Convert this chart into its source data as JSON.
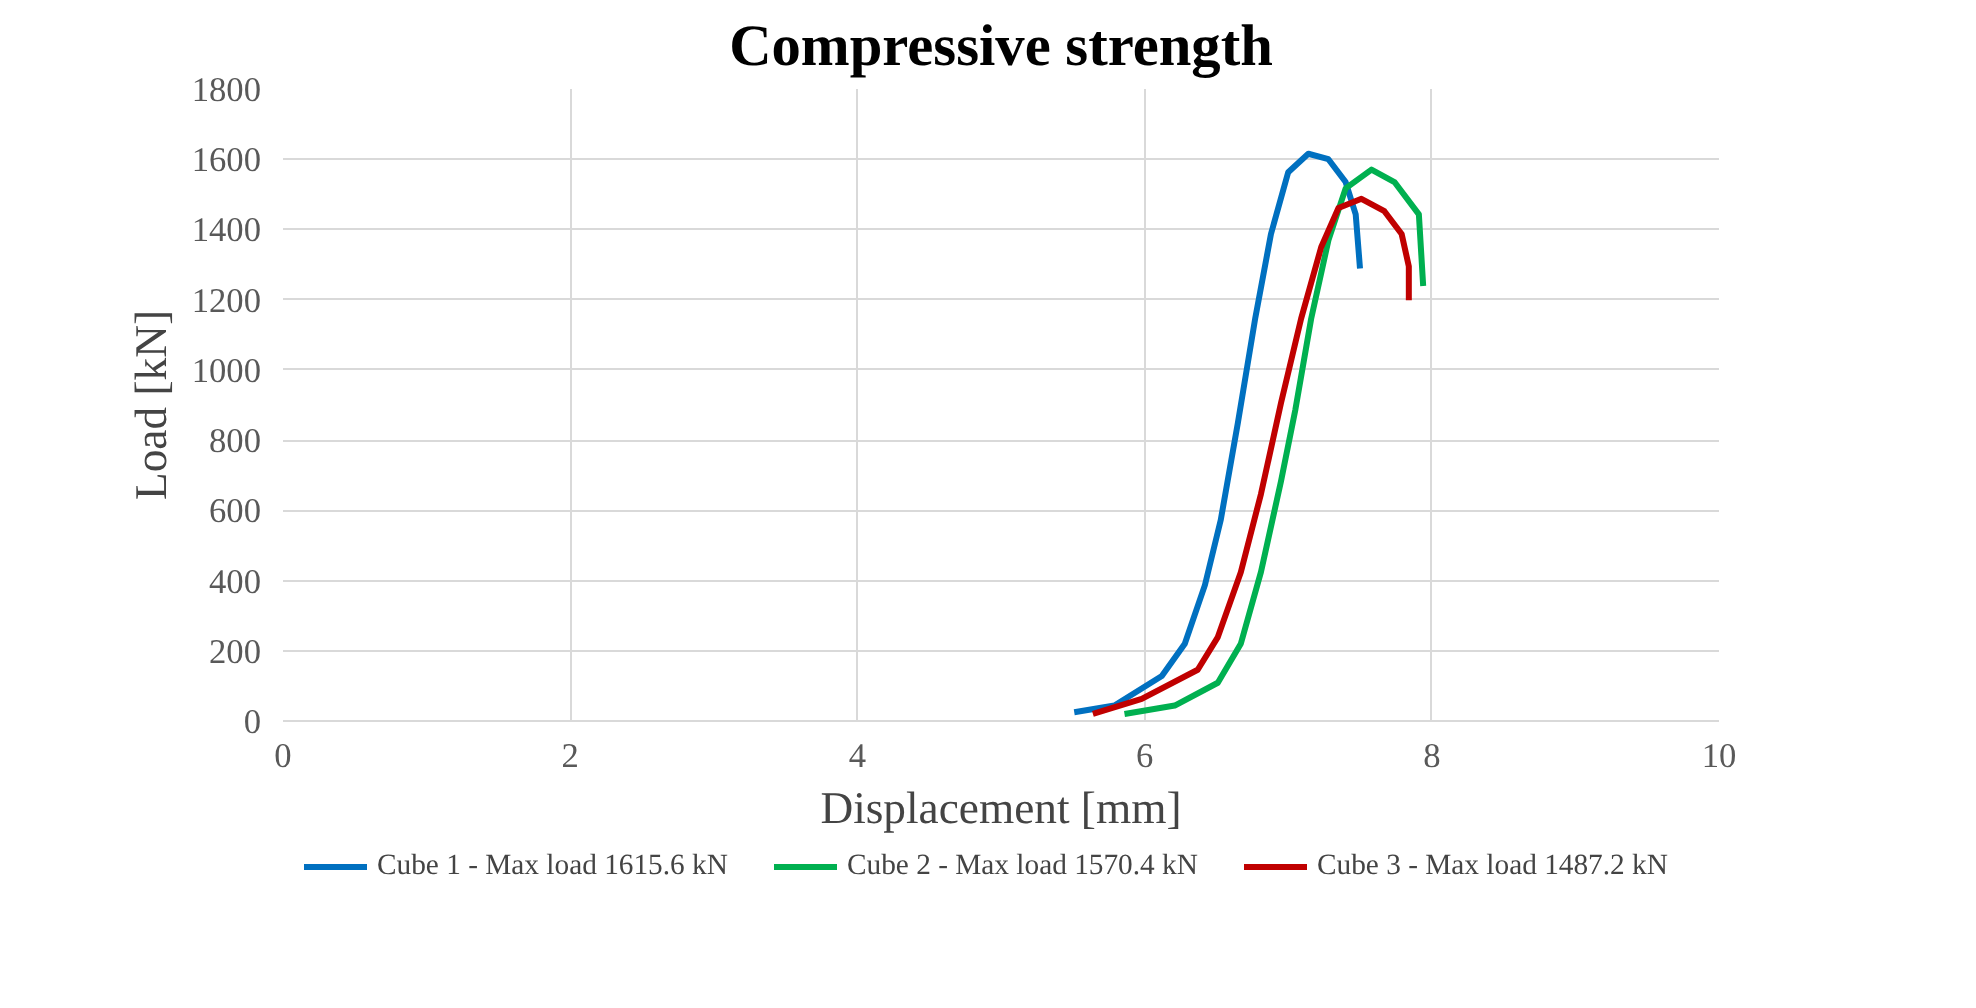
{
  "chart_data": {
    "type": "line",
    "title": "Compressive strength",
    "xlabel": "Displacement [mm]",
    "ylabel": "Load [kN]",
    "xlim": [
      0,
      10
    ],
    "xticks": [
      0,
      2,
      4,
      6,
      8,
      10
    ],
    "ylim": [
      0,
      1800
    ],
    "yticks": [
      0,
      200,
      400,
      600,
      800,
      1000,
      1200,
      1400,
      1600,
      1800
    ],
    "grid": true,
    "legend": "bottom",
    "marker": "none",
    "line_style": "solid",
    "series": [
      {
        "name": "Cube 1 - Max load 1615.6 kN",
        "color": "#0070c0",
        "x": [
          5.51,
          5.79,
          6.12,
          6.28,
          6.42,
          6.53,
          6.65,
          6.77,
          6.88,
          7.0,
          7.14,
          7.28,
          7.4,
          7.47,
          7.5
        ],
        "values": [
          25,
          44,
          128,
          220,
          387,
          572,
          850,
          1146,
          1387,
          1563,
          1615.6,
          1600,
          1535,
          1443,
          1289
        ]
      },
      {
        "name": "Cube 2 - Max load 1570.4 kN",
        "color": "#00b050",
        "x": [
          5.86,
          6.21,
          6.51,
          6.67,
          6.81,
          6.95,
          7.05,
          7.16,
          7.28,
          7.4,
          7.58,
          7.74,
          7.91,
          7.94
        ],
        "values": [
          20,
          44,
          109,
          220,
          424,
          683,
          887,
          1146,
          1369,
          1517,
          1570.4,
          1535,
          1443,
          1239
        ]
      },
      {
        "name": "Cube 3 - Max load 1487.2 kN",
        "color": "#c00000",
        "x": [
          5.64,
          5.98,
          6.37,
          6.51,
          6.67,
          6.81,
          6.95,
          7.09,
          7.23,
          7.35,
          7.51,
          7.67,
          7.79,
          7.84,
          7.84
        ],
        "values": [
          20,
          63,
          146,
          239,
          424,
          646,
          906,
          1146,
          1350,
          1461,
          1487.2,
          1452,
          1387,
          1295,
          1198
        ]
      }
    ]
  }
}
